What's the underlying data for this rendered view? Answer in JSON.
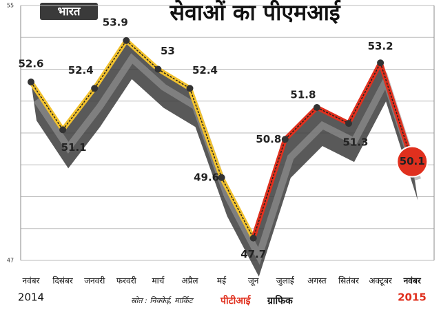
{
  "badge": "भारत",
  "chart_data": {
    "type": "line",
    "title": "सेवाओं का पीएमआई",
    "categories": [
      "नवंबर",
      "दिसंबर",
      "जनवरी",
      "फरवरी",
      "मार्च",
      "अप्रैल",
      "मई",
      "जून",
      "जुलाई",
      "अगस्त",
      "सितंबर",
      "अक्टूबर",
      "नवंबर"
    ],
    "values": [
      52.6,
      51.1,
      52.4,
      53.9,
      53.0,
      52.4,
      49.6,
      47.7,
      50.8,
      51.8,
      51.3,
      53.2,
      50.1
    ],
    "colors": [
      "#f2c22e",
      "#f2c22e",
      "#f2c22e",
      "#f2c22e",
      "#f2c22e",
      "#f2c22e",
      "#f2c22e",
      "#e0301e",
      "#e0301e",
      "#e0301e",
      "#e0301e",
      "#e0301e",
      "#e0301e"
    ],
    "ylim": [
      47,
      55
    ],
    "yticks": [
      47,
      55
    ],
    "gridlines": [
      47,
      48,
      49,
      50,
      51,
      52,
      53,
      54,
      55
    ],
    "grid": true,
    "start_year": "2014",
    "end_year": "2015"
  },
  "footer": {
    "source": "स्रोत : निक्केई, मार्किट",
    "credit_agency": "पीटीआई",
    "credit_label": "ग्राफिक"
  }
}
